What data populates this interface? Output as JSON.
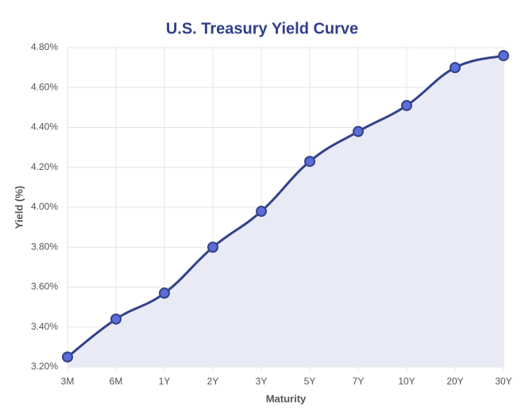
{
  "chart_data": {
    "type": "line",
    "title": "U.S. Treasury Yield Curve",
    "x_label": "Maturity",
    "y_label": "Yield (%)",
    "categories": [
      "3M",
      "6M",
      "1Y",
      "2Y",
      "3Y",
      "5Y",
      "7Y",
      "10Y",
      "20Y",
      "30Y"
    ],
    "series": [
      {
        "name": "Yield",
        "color": "#34428a",
        "values": [
          3.25,
          3.44,
          3.57,
          3.8,
          3.98,
          4.23,
          4.38,
          4.51,
          4.7,
          4.76
        ]
      }
    ],
    "ylim": [
      3.2,
      4.8
    ],
    "yticks": [
      {
        "value": 3.2,
        "label": "3.20%"
      },
      {
        "value": 3.4,
        "label": "3.40%"
      },
      {
        "value": 3.6,
        "label": "3.60%"
      },
      {
        "value": 3.8,
        "label": "3.80%"
      },
      {
        "value": 4.0,
        "label": "4.00%"
      },
      {
        "value": 4.2,
        "label": "4.20%"
      },
      {
        "value": 4.4,
        "label": "4.40%"
      },
      {
        "value": 4.6,
        "label": "4.60%"
      },
      {
        "value": 4.8,
        "label": "4.80%"
      }
    ],
    "grid": true,
    "area_fill": "#e8eaf5",
    "marker_fill": "#5b6ed8"
  }
}
